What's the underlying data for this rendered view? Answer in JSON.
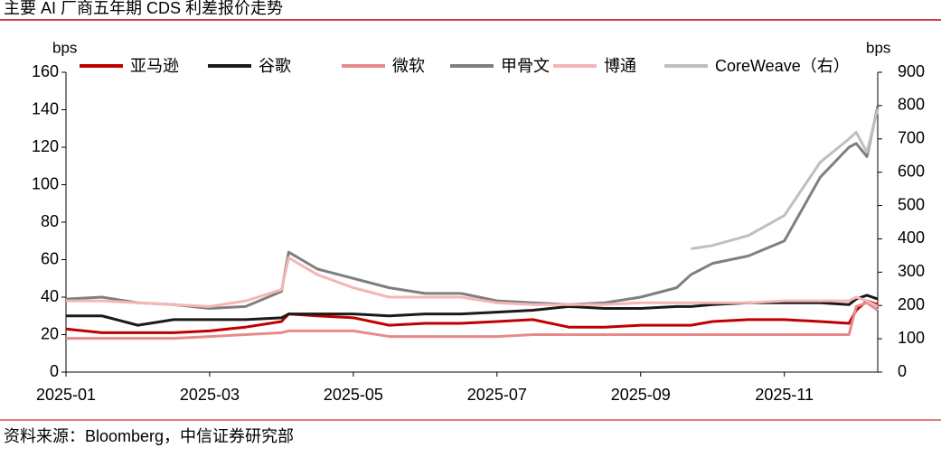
{
  "chart_data": {
    "type": "line",
    "title": "主要 AI 厂商五年期 CDS 利差报价走势",
    "source": "资料来源：Bloomberg，中信证券研究部",
    "y_label": "bps",
    "y2_label": "bps",
    "x": [
      0,
      0.5,
      1,
      1.5,
      2,
      2.5,
      3,
      3.1,
      3.5,
      4,
      4.5,
      5,
      5.5,
      6,
      6.5,
      7,
      7.5,
      8,
      8.5,
      8.7,
      9,
      9.5,
      10,
      10.5,
      10.9,
      11,
      11.15,
      11.3
    ],
    "xlim": [
      0,
      11.3
    ],
    "xticks": [
      {
        "value": 0,
        "label": "2025-01"
      },
      {
        "value": 2,
        "label": "2025-03"
      },
      {
        "value": 4,
        "label": "2025-05"
      },
      {
        "value": 6,
        "label": "2025-07"
      },
      {
        "value": 8,
        "label": "2025-09"
      },
      {
        "value": 10,
        "label": "2025-11"
      }
    ],
    "ylim": [
      0,
      160
    ],
    "yticks": [
      0,
      20,
      40,
      60,
      80,
      100,
      120,
      140,
      160
    ],
    "y2lim": [
      0,
      900
    ],
    "y2ticks": [
      0,
      100,
      200,
      300,
      400,
      500,
      600,
      700,
      800,
      900
    ],
    "series": [
      {
        "name": "亚马逊",
        "color": "#c00000",
        "values": [
          23,
          21,
          21,
          21,
          22,
          24,
          27,
          31,
          30,
          29,
          25,
          26,
          26,
          27,
          28,
          24,
          24,
          25,
          25,
          25,
          27,
          28,
          28,
          27,
          26,
          33,
          38,
          36
        ]
      },
      {
        "name": "谷歌",
        "color": "#1a1a1a",
        "values": [
          30,
          30,
          25,
          28,
          28,
          28,
          29,
          31,
          31,
          31,
          30,
          31,
          31,
          32,
          33,
          35,
          34,
          34,
          35,
          35,
          36,
          37,
          37,
          37,
          36,
          39,
          41,
          39
        ]
      },
      {
        "name": "微软",
        "color": "#e88a8a",
        "values": [
          18,
          18,
          18,
          18,
          19,
          20,
          21,
          22,
          22,
          22,
          19,
          19,
          19,
          19,
          20,
          20,
          20,
          20,
          20,
          20,
          20,
          20,
          20,
          20,
          20,
          35,
          37,
          33
        ]
      },
      {
        "name": "甲骨文",
        "color": "#7f7f7f",
        "values": [
          39,
          40,
          37,
          36,
          34,
          35,
          43,
          64,
          55,
          50,
          45,
          42,
          42,
          38,
          37,
          36,
          37,
          40,
          45,
          52,
          58,
          62,
          70,
          104,
          120,
          122,
          115,
          142
        ]
      },
      {
        "name": "博通",
        "color": "#f4b6b6",
        "values": [
          38,
          38,
          37,
          36,
          35,
          38,
          44,
          61,
          52,
          45,
          40,
          40,
          40,
          37,
          36,
          36,
          36,
          37,
          37,
          37,
          37,
          37,
          38,
          38,
          38,
          40,
          38,
          35
        ]
      },
      {
        "name": "CoreWeave（右）",
        "color": "#bfbfbf",
        "axis": "y2",
        "values": [
          null,
          null,
          null,
          null,
          null,
          null,
          null,
          null,
          null,
          null,
          null,
          null,
          null,
          null,
          null,
          null,
          null,
          null,
          null,
          370,
          380,
          410,
          470,
          630,
          700,
          720,
          660,
          790
        ]
      }
    ]
  }
}
